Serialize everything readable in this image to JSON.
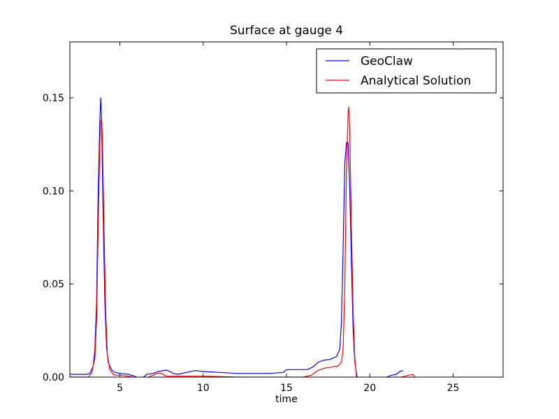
{
  "chart_data": {
    "type": "line",
    "title": "Surface at gauge 4",
    "xlabel": "time",
    "ylabel": "",
    "xlim": [
      2,
      28
    ],
    "ylim": [
      0,
      0.18
    ],
    "xticks": [
      5,
      10,
      15,
      20,
      25
    ],
    "xtick_labels": [
      "5",
      "10",
      "15",
      "20",
      "25"
    ],
    "yticks": [
      0.0,
      0.05,
      0.1,
      0.15
    ],
    "ytick_labels": [
      "0.00",
      "0.05",
      "0.10",
      "0.15"
    ],
    "grid": false,
    "legend_position": "top-right",
    "series": [
      {
        "name": "GeoClaw",
        "color": "#0000ff",
        "segments": [
          {
            "x": [
              2.0,
              3.0,
              3.2,
              3.4,
              3.5,
              3.6,
              3.7,
              3.8,
              3.85,
              3.9,
              4.0,
              4.1,
              4.2,
              4.3,
              4.5,
              4.7,
              5.0,
              5.5,
              5.8,
              6.0,
              6.1,
              6.2,
              6.3,
              6.5,
              6.6,
              7.0,
              7.3,
              7.6,
              7.8,
              8.0,
              8.2,
              8.5,
              9.0,
              9.5,
              10.0,
              11.0,
              12.0,
              13.0,
              14.0,
              14.8,
              15.0,
              15.5,
              16.0,
              16.3,
              16.6,
              16.9,
              17.2,
              17.6,
              18.0,
              18.2,
              18.3,
              18.4,
              18.5,
              18.6,
              18.7,
              18.8,
              18.9,
              19.0,
              19.1,
              19.2,
              19.3
            ],
            "y": [
              0.0015,
              0.0015,
              0.002,
              0.006,
              0.015,
              0.04,
              0.1,
              0.138,
              0.15,
              0.14,
              0.085,
              0.04,
              0.016,
              0.008,
              0.004,
              0.0025,
              0.002,
              0.0015,
              0.0008,
              0.0,
              -0.0005,
              0.0,
              -0.0005,
              0.0005,
              0.0015,
              0.002,
              0.003,
              0.0035,
              0.0038,
              0.003,
              0.002,
              0.0015,
              0.0025,
              0.0035,
              0.003,
              0.0025,
              0.002,
              0.002,
              0.002,
              0.0025,
              0.004,
              0.004,
              0.004,
              0.0042,
              0.0055,
              0.008,
              0.009,
              0.0095,
              0.011,
              0.015,
              0.03,
              0.07,
              0.115,
              0.126,
              0.126,
              0.1,
              0.06,
              0.025,
              0.008,
              0.002,
              -0.003
            ]
          },
          {
            "x": [
              20.6,
              21.0,
              21.3,
              21.6,
              21.8,
              22.0
            ],
            "y": [
              -0.002,
              0.0,
              0.001,
              0.0015,
              0.003,
              0.0035
            ]
          }
        ]
      },
      {
        "name": "Analytical Solution",
        "color": "#ff0000",
        "segments": [
          {
            "x": [
              2.0,
              3.1,
              3.3,
              3.5,
              3.6,
              3.7,
              3.8,
              3.85,
              3.9,
              3.95,
              4.05,
              4.15,
              4.25,
              4.4,
              4.6,
              4.8,
              5.0,
              5.5,
              5.8,
              6.0,
              6.2,
              6.4,
              6.7,
              7.0,
              7.2,
              7.5,
              7.8,
              8.0,
              8.5,
              9.0,
              9.5,
              10.0,
              11.0,
              12.0,
              13.0,
              14.0,
              15.0,
              16.0,
              16.5,
              16.8,
              17.0,
              17.4,
              17.8,
              18.1,
              18.3,
              18.4,
              18.5,
              18.6,
              18.7,
              18.75,
              18.8,
              18.9,
              19.0,
              19.1,
              19.2,
              19.3
            ],
            "y": [
              0.0,
              0.0,
              0.002,
              0.01,
              0.03,
              0.08,
              0.125,
              0.137,
              0.139,
              0.13,
              0.08,
              0.035,
              0.012,
              0.004,
              0.0015,
              0.001,
              0.001,
              0.0005,
              0.0,
              -0.0005,
              -0.001,
              -0.0005,
              0.0,
              0.001,
              0.002,
              0.002,
              0.0005,
              0.0005,
              0.0005,
              0.0005,
              0.0005,
              0.0005,
              0.0003,
              0.0,
              0.0,
              0.0,
              0.0,
              0.0,
              0.001,
              0.003,
              0.004,
              0.005,
              0.0055,
              0.006,
              0.008,
              0.015,
              0.05,
              0.11,
              0.142,
              0.145,
              0.13,
              0.08,
              0.035,
              0.01,
              0.0,
              -0.003
            ]
          },
          {
            "x": [
              21.6,
              21.9,
              22.1,
              22.4,
              22.6,
              22.7,
              22.9,
              23.0
            ],
            "y": [
              -0.001,
              0.0,
              0.0005,
              0.0012,
              0.0013,
              0.0,
              -0.0005,
              -0.0005
            ]
          }
        ]
      }
    ]
  }
}
